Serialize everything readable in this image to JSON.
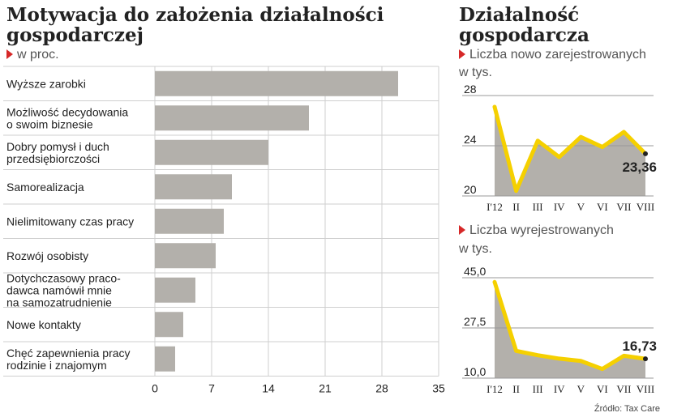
{
  "left": {
    "title_line1": "Motywacja do założenia działalności",
    "title_line2": "gospodarczej",
    "unit": "w proc."
  },
  "right": {
    "title_line1": "Działalność",
    "title_line2": "gospodarcza"
  },
  "source": "Źródło: Tax Care",
  "chart_data": [
    {
      "type": "bar",
      "orientation": "horizontal",
      "categories": [
        [
          "Wyższe zarobki"
        ],
        [
          "Możliwość decydowania",
          "o swoim biznesie"
        ],
        [
          "Dobry pomysł i duch",
          "przedsiębiorczości"
        ],
        [
          "Samorealizacja"
        ],
        [
          "Nielimitowany czas pracy"
        ],
        [
          "Rozwój osobisty"
        ],
        [
          "Dotychczasowy praco-",
          "dawca namówił mnie",
          "na samozatrudnienie"
        ],
        [
          "Nowe kontakty"
        ],
        [
          "Chęć zapewnienia pracy",
          "rodzinie i znajomym"
        ]
      ],
      "values": [
        30,
        19,
        14,
        9.5,
        8.5,
        7.5,
        5,
        3.5,
        2.5
      ],
      "xlim": [
        0,
        35
      ],
      "xticks": [
        "0",
        "7",
        "14",
        "21",
        "28",
        "35"
      ],
      "xtick_values": [
        0,
        7,
        14,
        21,
        28,
        35
      ],
      "grid": true,
      "colors": {
        "bar": "#b3b0ab",
        "grid": "#cfcfcf"
      }
    },
    {
      "type": "area",
      "title": "Liczba nowo zarejestrowanych",
      "unit": "w tys.",
      "categories": [
        "I'12",
        "II",
        "III",
        "IV",
        "V",
        "VI",
        "VII",
        "VIII"
      ],
      "values": [
        27.1,
        20.4,
        24.4,
        23.1,
        24.7,
        23.9,
        25.1,
        23.36
      ],
      "ylim": [
        20,
        28
      ],
      "yticks": [
        "28",
        "24",
        "20"
      ],
      "ytick_values": [
        28,
        24,
        20
      ],
      "last_label": "23,36",
      "colors": {
        "line": "#f5d000",
        "area": "#b3b0ab"
      }
    },
    {
      "type": "area",
      "title": "Liczba wyrejestrowanych",
      "unit": "w tys.",
      "categories": [
        "I'12",
        "II",
        "III",
        "IV",
        "V",
        "VI",
        "VII",
        "VIII"
      ],
      "values": [
        43.5,
        19.5,
        18.0,
        16.8,
        16.0,
        13.2,
        17.8,
        16.73
      ],
      "ylim": [
        10,
        45
      ],
      "yticks": [
        "45,0",
        "27,5",
        "10,0"
      ],
      "ytick_values": [
        45,
        27.5,
        10
      ],
      "last_label": "16,73",
      "colors": {
        "line": "#f5d000",
        "area": "#b3b0ab"
      }
    }
  ]
}
